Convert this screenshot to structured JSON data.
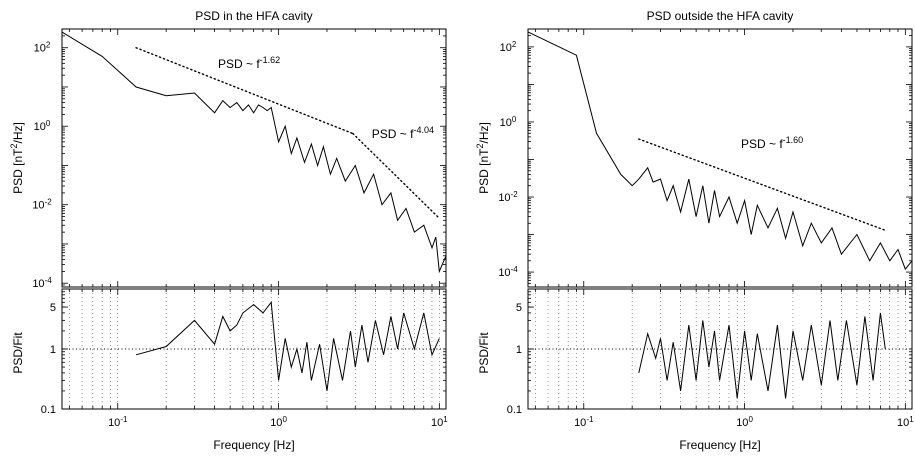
{
  "chart_data": [
    {
      "type": "line",
      "title": "PSD in the HFA cavity",
      "xlabel": "Frequency [Hz]",
      "x_scale": "log",
      "xlim": [
        0.045,
        11
      ],
      "x_ticks": [
        "10",
        "10",
        "10"
      ],
      "x_tick_exps": [
        "-1",
        "0",
        "1"
      ],
      "top": {
        "ylabel": "PSD [nT",
        "ylabel_sup": "2",
        "ylabel_tail": "/Hz]",
        "y_scale": "log",
        "ylim": [
          8e-05,
          300
        ],
        "y_ticks": [
          "10",
          "10",
          "10",
          "10"
        ],
        "y_tick_exps": [
          "2",
          "0",
          "-2",
          "-4"
        ],
        "series": [
          {
            "x": [
              0.045,
              0.08,
              0.13,
              0.2,
              0.3,
              0.4,
              0.45,
              0.5,
              0.55,
              0.6,
              0.65,
              0.7,
              0.75,
              0.8,
              0.85,
              0.9,
              1.0,
              1.1,
              1.2,
              1.3,
              1.45,
              1.6,
              1.75,
              1.9,
              2.1,
              2.3,
              2.6,
              3.0,
              3.4,
              3.9,
              4.4,
              5.0,
              5.5,
              6.2,
              7.0,
              8.0,
              9.0,
              9.5,
              10.0,
              11.0
            ],
            "y": [
              250,
              60,
              10,
              6,
              7,
              2.2,
              4.5,
              3.0,
              4.0,
              2.5,
              3.5,
              2.2,
              3.5,
              3.0,
              2.5,
              3.0,
              0.4,
              1.0,
              0.2,
              0.5,
              0.12,
              0.35,
              0.1,
              0.3,
              0.06,
              0.15,
              0.04,
              0.1,
              0.02,
              0.06,
              0.01,
              0.02,
              0.004,
              0.008,
              0.002,
              0.003,
              0.0008,
              0.0015,
              0.0002,
              0.0005
            ]
          }
        ],
        "fits": [
          {
            "x": [
              0.13,
              2.9
            ],
            "y": [
              100,
              0.65
            ],
            "label": "PSD ~ f",
            "exp": "-1.62",
            "label_at": [
              0.42,
              30
            ]
          },
          {
            "x": [
              2.9,
              10.0
            ],
            "y": [
              0.65,
              0.0045
            ],
            "label": "PSD ~ f",
            "exp": "-4.04",
            "label_at": [
              3.8,
              0.5
            ]
          }
        ]
      },
      "bottom": {
        "ylabel": "PSD/Fit",
        "y_scale": "log",
        "ylim": [
          0.1,
          10
        ],
        "y_ticks": [
          "0.1",
          "1",
          "5"
        ],
        "y_tick_values": [
          0.1,
          1,
          5
        ],
        "ref_line": 1,
        "series": [
          {
            "x": [
              0.13,
              0.2,
              0.3,
              0.4,
              0.45,
              0.5,
              0.55,
              0.6,
              0.7,
              0.8,
              0.9,
              1.0,
              1.1,
              1.2,
              1.3,
              1.4,
              1.5,
              1.6,
              1.8,
              2.0,
              2.2,
              2.5,
              2.8,
              3.0,
              3.3,
              3.6,
              4.0,
              4.5,
              5.0,
              5.5,
              6.0,
              7.0,
              8.0,
              9.0,
              10.0
            ],
            "y": [
              0.8,
              1.1,
              3.0,
              1.2,
              3.5,
              2.0,
              2.5,
              4.0,
              5.5,
              4.0,
              6.0,
              0.3,
              1.5,
              0.5,
              1.0,
              0.4,
              1.3,
              0.3,
              1.2,
              0.2,
              1.5,
              0.3,
              2.0,
              0.5,
              2.5,
              0.6,
              3.0,
              0.8,
              3.5,
              1.0,
              4.0,
              1.0,
              4.0,
              0.8,
              1.5
            ]
          }
        ]
      }
    },
    {
      "type": "line",
      "title": "PSD outside the HFA cavity",
      "xlabel": "Frequency [Hz]",
      "x_scale": "log",
      "xlim": [
        0.045,
        11
      ],
      "x_ticks": [
        "10",
        "10",
        "10"
      ],
      "x_tick_exps": [
        "-1",
        "0",
        "1"
      ],
      "top": {
        "ylabel": "PSD [nT",
        "ylabel_sup": "2",
        "ylabel_tail": "/Hz]",
        "y_scale": "log",
        "ylim": [
          4e-05,
          300
        ],
        "y_ticks": [
          "10",
          "10",
          "10",
          "10"
        ],
        "y_tick_exps": [
          "2",
          "0",
          "-2",
          "-4"
        ],
        "series": [
          {
            "x": [
              0.045,
              0.09,
              0.12,
              0.17,
              0.2,
              0.22,
              0.25,
              0.27,
              0.3,
              0.33,
              0.36,
              0.4,
              0.45,
              0.5,
              0.55,
              0.6,
              0.65,
              0.7,
              0.8,
              0.9,
              1.0,
              1.1,
              1.2,
              1.4,
              1.6,
              1.8,
              2.0,
              2.3,
              2.6,
              3.0,
              3.5,
              4.0,
              5.0,
              6.0,
              7.0,
              8.0,
              9.0,
              10.0,
              11.0
            ],
            "y": [
              250,
              60,
              0.5,
              0.04,
              0.02,
              0.03,
              0.06,
              0.025,
              0.03,
              0.008,
              0.02,
              0.004,
              0.03,
              0.003,
              0.02,
              0.002,
              0.015,
              0.003,
              0.01,
              0.002,
              0.008,
              0.001,
              0.006,
              0.0015,
              0.005,
              0.0008,
              0.004,
              0.0005,
              0.002,
              0.0006,
              0.0015,
              0.0003,
              0.001,
              0.0002,
              0.0006,
              0.0002,
              0.0004,
              0.00012,
              0.0002
            ]
          }
        ],
        "fits": [
          {
            "x": [
              0.22,
              7.5
            ],
            "y": [
              0.35,
              0.0013
            ],
            "label": "PSD ~ f",
            "exp": "-1.60",
            "label_at": [
              0.95,
              0.2
            ]
          }
        ]
      },
      "bottom": {
        "ylabel": "PSD/Fit",
        "y_scale": "log",
        "ylim": [
          0.1,
          10
        ],
        "y_ticks": [
          "0.1",
          "1",
          "5"
        ],
        "y_tick_values": [
          0.1,
          1,
          5
        ],
        "ref_line": 1,
        "series": [
          {
            "x": [
              0.22,
              0.25,
              0.28,
              0.3,
              0.33,
              0.36,
              0.4,
              0.45,
              0.5,
              0.55,
              0.6,
              0.65,
              0.7,
              0.8,
              0.9,
              1.0,
              1.1,
              1.2,
              1.4,
              1.6,
              1.8,
              2.0,
              2.3,
              2.6,
              3.0,
              3.4,
              3.8,
              4.3,
              5.0,
              5.6,
              6.3,
              7.0,
              7.5
            ],
            "y": [
              0.4,
              1.8,
              0.7,
              1.5,
              0.3,
              1.3,
              0.2,
              2.5,
              0.3,
              3.0,
              0.5,
              2.0,
              0.3,
              2.5,
              0.15,
              2.0,
              0.3,
              1.8,
              0.2,
              2.5,
              0.15,
              2.0,
              0.3,
              2.5,
              0.25,
              3.0,
              0.3,
              3.0,
              0.25,
              3.5,
              0.3,
              4.0,
              1.0
            ]
          }
        ]
      }
    }
  ]
}
